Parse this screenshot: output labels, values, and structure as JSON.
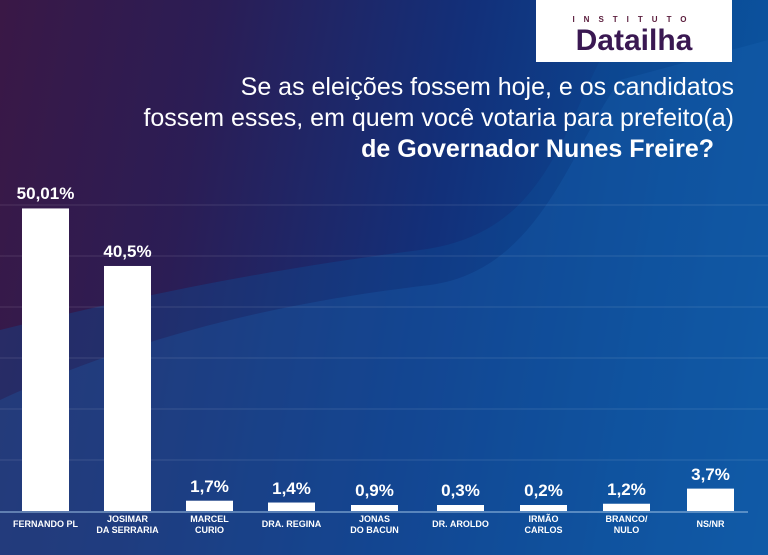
{
  "logo": {
    "top": "INSTITUTO",
    "name": "Datailha"
  },
  "title": {
    "line1": "Se as eleições fossem hoje, e os candidatos",
    "line2": "fossem esses, em quem você votaria para prefeito(a)",
    "line3": "de Governador  Nunes Freire?"
  },
  "chart_data": {
    "type": "bar",
    "categories": [
      [
        "FERNANDO PL"
      ],
      [
        "JOSIMAR",
        "DA SERRARIA"
      ],
      [
        "MARCEL",
        "CURIO"
      ],
      [
        "DRA. REGINA"
      ],
      [
        "JONAS",
        "DO BACUN"
      ],
      [
        "DR. AROLDO"
      ],
      [
        "IRMÃO",
        "CARLOS"
      ],
      [
        "BRANCO/",
        "NULO"
      ],
      [
        "NS/NR"
      ]
    ],
    "values": [
      50.01,
      40.5,
      1.7,
      1.4,
      0.9,
      0.3,
      0.2,
      1.2,
      3.7
    ],
    "data_labels": [
      "50,01%",
      "40,5%",
      "1,7%",
      "1,4%",
      "0,9%",
      "0,3%",
      "0,2%",
      "1,2%",
      "3,7%"
    ],
    "bar_color": "#ffffff",
    "ylim": [
      0,
      55
    ],
    "grid": true
  }
}
